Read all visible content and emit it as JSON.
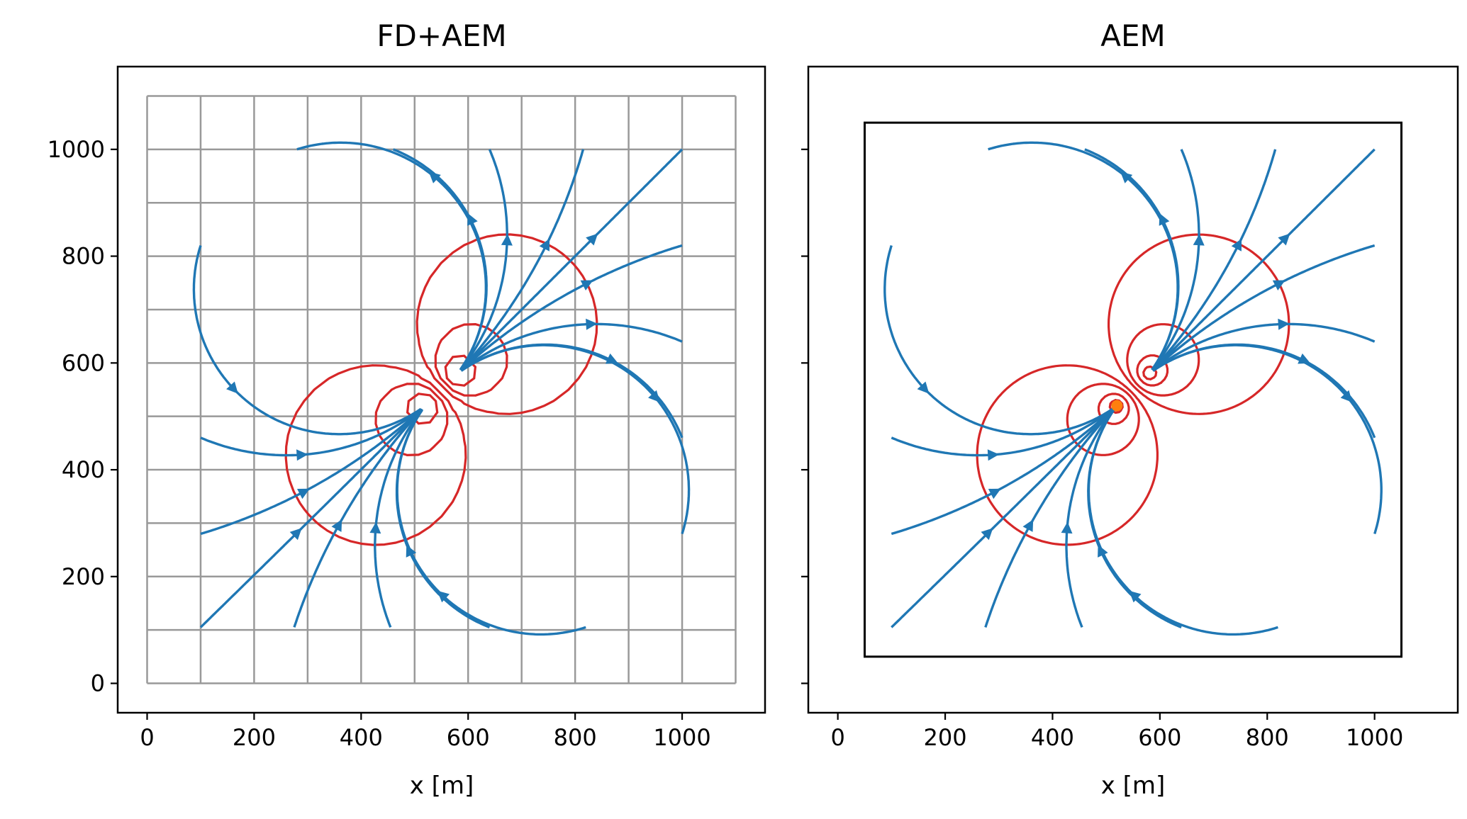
{
  "chart_data": [
    {
      "type": "line",
      "title": "FD+AEM",
      "xlabel": "x [m]",
      "ylabel": "",
      "xlim": [
        -55,
        1155
      ],
      "ylim": [
        -55,
        1155
      ],
      "xticks": [
        0,
        200,
        400,
        600,
        800,
        1000
      ],
      "yticks": [
        0,
        200,
        400,
        600,
        800,
        1000
      ],
      "grid": {
        "x": [
          0,
          100,
          200,
          300,
          400,
          500,
          600,
          700,
          800,
          900,
          1000,
          1100
        ],
        "y": [
          0,
          100,
          200,
          300,
          400,
          500,
          600,
          700,
          800,
          900,
          1000,
          1100
        ],
        "color": "#999999"
      },
      "wells": [
        {
          "name": "injection well",
          "x": 520,
          "y": 520,
          "shown": false
        },
        {
          "name": "extraction well",
          "x": 580,
          "y": 580,
          "shown": false
        }
      ],
      "contour_color": "#d62728",
      "streamline_color": "#1f77b4"
    },
    {
      "type": "line",
      "title": "AEM",
      "xlabel": "x [m]",
      "ylabel": "",
      "xlim": [
        -55,
        1155
      ],
      "ylim": [
        -55,
        1155
      ],
      "xticks": [
        0,
        200,
        400,
        600,
        800,
        1000
      ],
      "yticks": [
        0,
        200,
        400,
        600,
        800,
        1000
      ],
      "ytick_labels_shown": false,
      "boundary_box": {
        "x": [
          50,
          1050
        ],
        "y": [
          50,
          1050
        ],
        "color": "#000000"
      },
      "wells": [
        {
          "name": "injection well",
          "x": 520,
          "y": 520,
          "shown": true,
          "color": "#ff7f0e"
        },
        {
          "name": "extraction well",
          "x": 580,
          "y": 580,
          "shown": false
        }
      ],
      "contour_color": "#d62728",
      "streamline_color": "#1f77b4"
    }
  ]
}
